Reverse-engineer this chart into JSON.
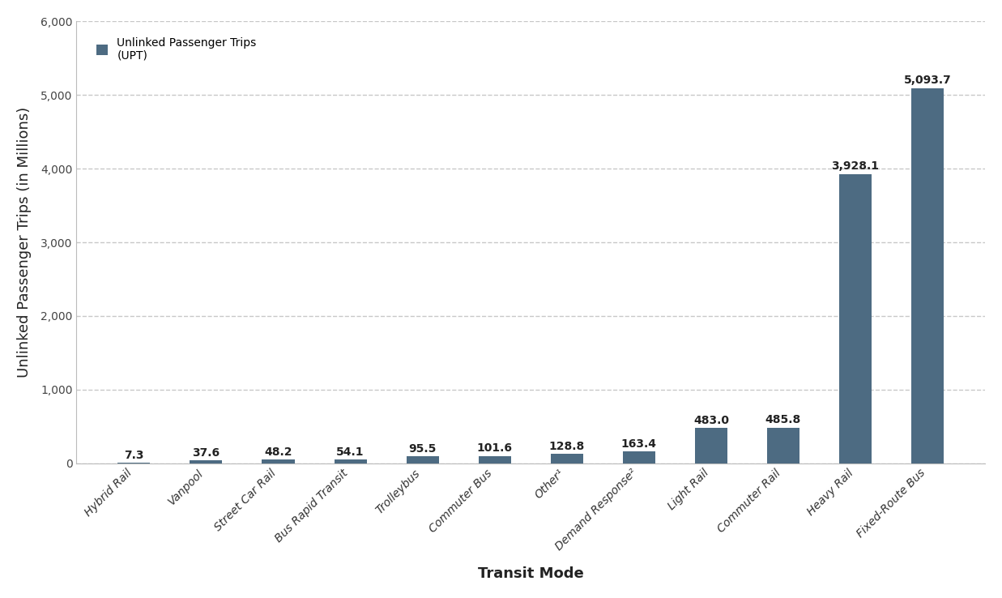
{
  "categories": [
    "Hybrid Rail",
    "Vanpool",
    "Street Car Rail",
    "Bus Rapid Transit",
    "Trolleybus",
    "Commuter Bus",
    "Other¹",
    "Demand Response²",
    "Light Rail",
    "Commuter Rail",
    "Heavy Rail",
    "Fixed-Route Bus"
  ],
  "values": [
    7.3,
    37.6,
    48.2,
    54.1,
    95.5,
    101.6,
    128.8,
    163.4,
    483.0,
    485.8,
    3928.1,
    5093.7
  ],
  "bar_color": "#4d6b82",
  "ylabel": "Unlinked Passenger Trips (in Millions)",
  "xlabel": "Transit Mode",
  "ylim": [
    0,
    6000
  ],
  "yticks": [
    0,
    1000,
    2000,
    3000,
    4000,
    5000,
    6000
  ],
  "legend_label": "Unlinked Passenger Trips\n(UPT)",
  "background_color": "#ffffff",
  "grid_color": "#c8c8c8",
  "bar_width": 0.45,
  "label_fontsize": 10,
  "axis_label_fontsize": 13,
  "tick_label_fontsize": 10,
  "value_label_fontsize": 10
}
